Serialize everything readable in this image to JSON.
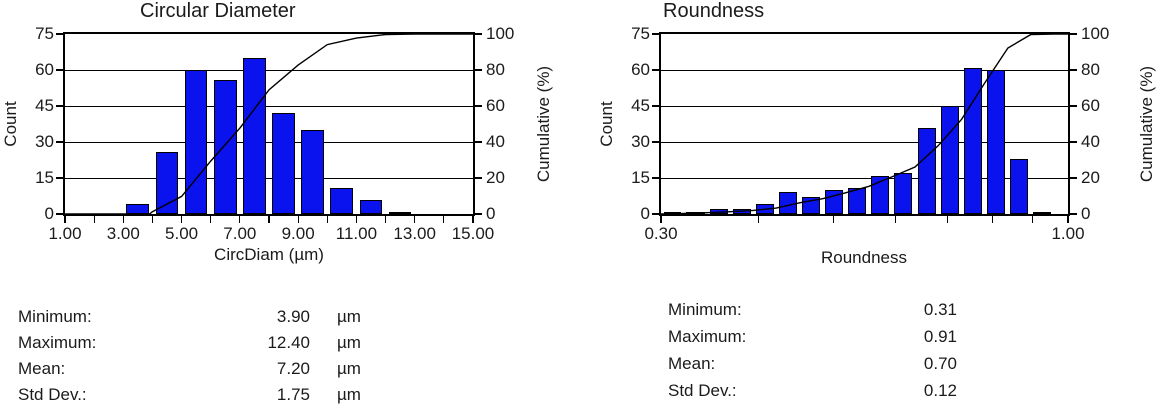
{
  "chart_data": [
    {
      "type": "bar",
      "subtype": "histogram-with-cumulative-line",
      "title": "Circular Diameter",
      "xlabel": "CircDiam (µm)",
      "ylabel": "Count",
      "ylabel_right": "Cumulative (%)",
      "x_scale": "linear",
      "xlim": [
        1.0,
        15.0
      ],
      "ylim": [
        0,
        75
      ],
      "ylim_right": [
        0,
        100
      ],
      "x_tick_values": [
        1,
        3,
        5,
        7,
        9,
        11,
        13,
        15
      ],
      "x_tick_labels": [
        "1.00",
        "3.00",
        "5.00",
        "7.00",
        "9.00",
        "11.00",
        "13.00",
        "15.00"
      ],
      "x_minor_tick_values": [
        2,
        4,
        6,
        8,
        10,
        12,
        14
      ],
      "y_ticks": [
        0,
        15,
        30,
        45,
        60,
        75
      ],
      "y_ticks_right": [
        0,
        20,
        40,
        60,
        80,
        100
      ],
      "grid": true,
      "legend": "none",
      "bar_color": "#0a12ee",
      "line_color": "#000000",
      "bin_edges": [
        3,
        4,
        5,
        6,
        7,
        8,
        9,
        10,
        11,
        12,
        13
      ],
      "counts": [
        4,
        26,
        60,
        56,
        65,
        42,
        35,
        11,
        6,
        1
      ],
      "cumulative_pct_at_bin_end": [
        1.3,
        9.8,
        29.4,
        47.7,
        69.0,
        82.7,
        94.1,
        97.7,
        99.7,
        100.0
      ],
      "cumulative_start_x": 3.9,
      "total_count": 306
    },
    {
      "type": "bar",
      "subtype": "histogram-with-cumulative-line",
      "title": "Roundness",
      "xlabel": "Roundness",
      "ylabel": "Count",
      "ylabel_right": "Cumulative (%)",
      "x_scale": "log",
      "xlim": [
        0.3,
        1.0
      ],
      "ylim": [
        0,
        75
      ],
      "ylim_right": [
        0,
        100
      ],
      "x_tick_values": [
        0.3,
        1.0
      ],
      "x_tick_labels": [
        "0.30",
        "1.00"
      ],
      "x_minor_tick_values": [
        0.4,
        0.5,
        0.6,
        0.7,
        0.8,
        0.9
      ],
      "y_ticks": [
        0,
        15,
        30,
        45,
        60,
        75
      ],
      "y_ticks_right": [
        0,
        20,
        40,
        60,
        80,
        100
      ],
      "grid": true,
      "legend": "none",
      "bar_color": "#0a12ee",
      "line_color": "#000000",
      "bin_edges": [
        0.3,
        0.321,
        0.344,
        0.368,
        0.394,
        0.422,
        0.452,
        0.484,
        0.518,
        0.555,
        0.594,
        0.636,
        0.681,
        0.73,
        0.781,
        0.837,
        0.896,
        0.958
      ],
      "counts": [
        1,
        1,
        2,
        2,
        4,
        9,
        7,
        10,
        11,
        16,
        17,
        36,
        45,
        61,
        60,
        23,
        1
      ],
      "cumulative_pct_at_bin_end": [
        0.3,
        0.7,
        1.3,
        2.0,
        3.3,
        6.2,
        8.5,
        11.8,
        15.4,
        20.6,
        26.1,
        37.9,
        52.6,
        72.5,
        92.2,
        99.7,
        100.0
      ],
      "cumulative_start_x": 0.31,
      "total_count": 306
    }
  ],
  "stats_blocks": [
    {
      "rows": [
        {
          "label": "Minimum:",
          "value": "3.90",
          "unit": "µm"
        },
        {
          "label": "Maximum:",
          "value": "12.40",
          "unit": "µm"
        },
        {
          "label": "Mean:",
          "value": "7.20",
          "unit": "µm"
        },
        {
          "label": "Std Dev.:",
          "value": "1.75",
          "unit": "µm"
        }
      ]
    },
    {
      "rows": [
        {
          "label": "Minimum:",
          "value": "0.31",
          "unit": ""
        },
        {
          "label": "Maximum:",
          "value": "0.91",
          "unit": ""
        },
        {
          "label": "Mean:",
          "value": "0.70",
          "unit": ""
        },
        {
          "label": "Std Dev.:",
          "value": "0.12",
          "unit": ""
        }
      ]
    }
  ]
}
